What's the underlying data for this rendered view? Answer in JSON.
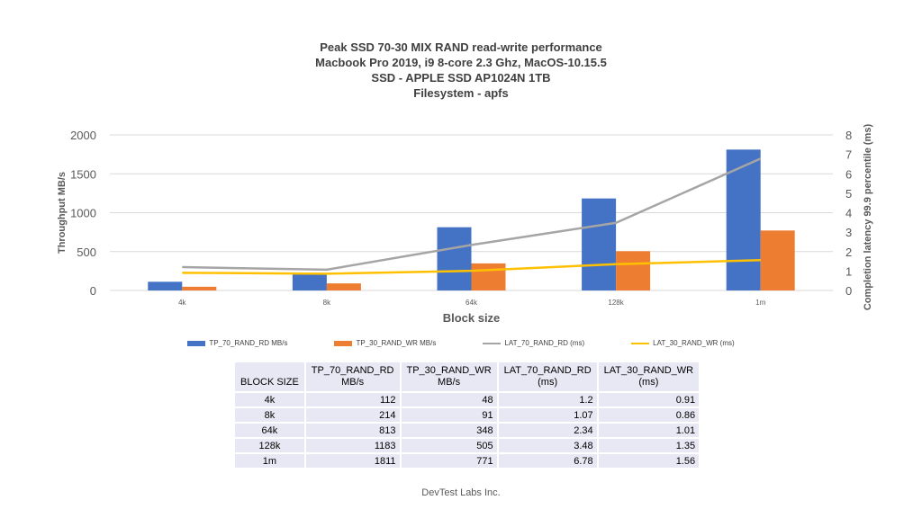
{
  "chart_data": {
    "type": "bar",
    "title_lines": [
      "Peak SSD 70-30 MIX RAND read-write performance",
      "Macbook Pro 2019, i9 8-core 2.3 Ghz, MacOS-10.15.5",
      "SSD - APPLE SSD AP1024N 1TB",
      "Filesystem - apfs"
    ],
    "categories": [
      "4k",
      "8k",
      "64k",
      "128k",
      "1m"
    ],
    "xlabel": "Block size",
    "ylabel": "Throughput MB/s",
    "y2label": "Completion latency 99.9 percentile (ms)",
    "ylim": [
      0,
      2000
    ],
    "yticks": [
      "0",
      "500",
      "1000",
      "1500",
      "2000"
    ],
    "y2lim": [
      0,
      8
    ],
    "y2ticks": [
      "0",
      "1",
      "2",
      "3",
      "4",
      "5",
      "6",
      "7",
      "8"
    ],
    "grid": true,
    "series": [
      {
        "name": "TP_70_RAND_RD MB/s",
        "kind": "bar",
        "axis": "left",
        "color": "#4472c4",
        "values": [
          112,
          214,
          813,
          1183,
          1811
        ]
      },
      {
        "name": "TP_30_RAND_WR MB/s",
        "kind": "bar",
        "axis": "left",
        "color": "#ed7d31",
        "values": [
          48,
          91,
          348,
          505,
          771
        ]
      },
      {
        "name": "LAT_70_RAND_RD (ms)",
        "kind": "line",
        "axis": "right",
        "color": "#a5a5a5",
        "values": [
          1.2,
          1.07,
          2.34,
          3.48,
          6.78
        ]
      },
      {
        "name": "LAT_30_RAND_WR (ms)",
        "kind": "line",
        "axis": "right",
        "color": "#ffc000",
        "values": [
          0.91,
          0.86,
          1.01,
          1.35,
          1.56
        ]
      }
    ],
    "legend_position": "bottom"
  },
  "table": {
    "headers": [
      [
        "BLOCK SIZE"
      ],
      [
        "TP_70_RAND_RD",
        "MB/s"
      ],
      [
        "TP_30_RAND_WR",
        "MB/s"
      ],
      [
        "LAT_70_RAND_RD",
        "(ms)"
      ],
      [
        "LAT_30_RAND_WR",
        "(ms)"
      ]
    ],
    "rows": [
      [
        "4k",
        "112",
        "48",
        "1.2",
        "0.91"
      ],
      [
        "8k",
        "214",
        "91",
        "1.07",
        "0.86"
      ],
      [
        "64k",
        "813",
        "348",
        "2.34",
        "1.01"
      ],
      [
        "128k",
        "1183",
        "505",
        "3.48",
        "1.35"
      ],
      [
        "1m",
        "1811",
        "771",
        "6.78",
        "1.56"
      ]
    ]
  },
  "footer": "DevTest Labs Inc."
}
